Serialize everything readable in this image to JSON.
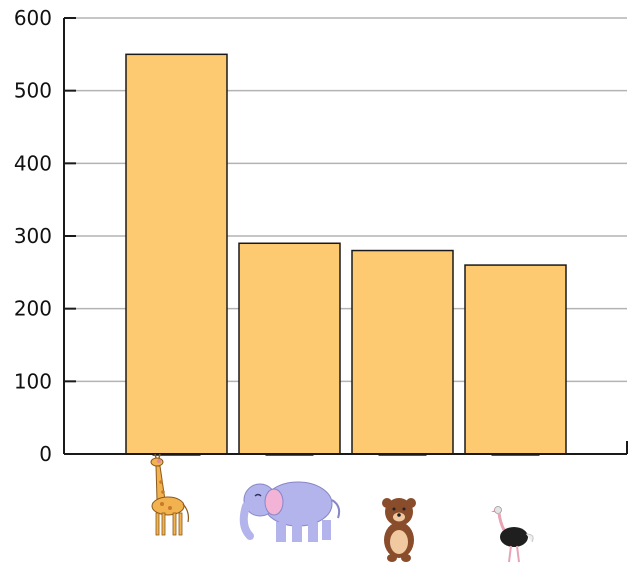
{
  "chart_data": {
    "type": "bar",
    "categories": [
      "giraffe",
      "elephant",
      "bear",
      "ostrich"
    ],
    "values": [
      550,
      290,
      280,
      260
    ],
    "title": "",
    "xlabel": "",
    "ylabel": "",
    "ylim": [
      0,
      600
    ],
    "yticks": [
      "0",
      "100",
      "200",
      "300",
      "400",
      "500",
      "600"
    ],
    "ytick_values": [
      0,
      100,
      200,
      300,
      400,
      500,
      600
    ],
    "grid": true,
    "category_icons": [
      "giraffe-icon",
      "elephant-icon",
      "bear-icon",
      "ostrich-icon"
    ],
    "colors": {
      "bar_fill": "#fdca72",
      "bar_stroke": "#1a1a1a",
      "grid": "#b3b3b3",
      "axis": "#1a1a1a"
    }
  }
}
